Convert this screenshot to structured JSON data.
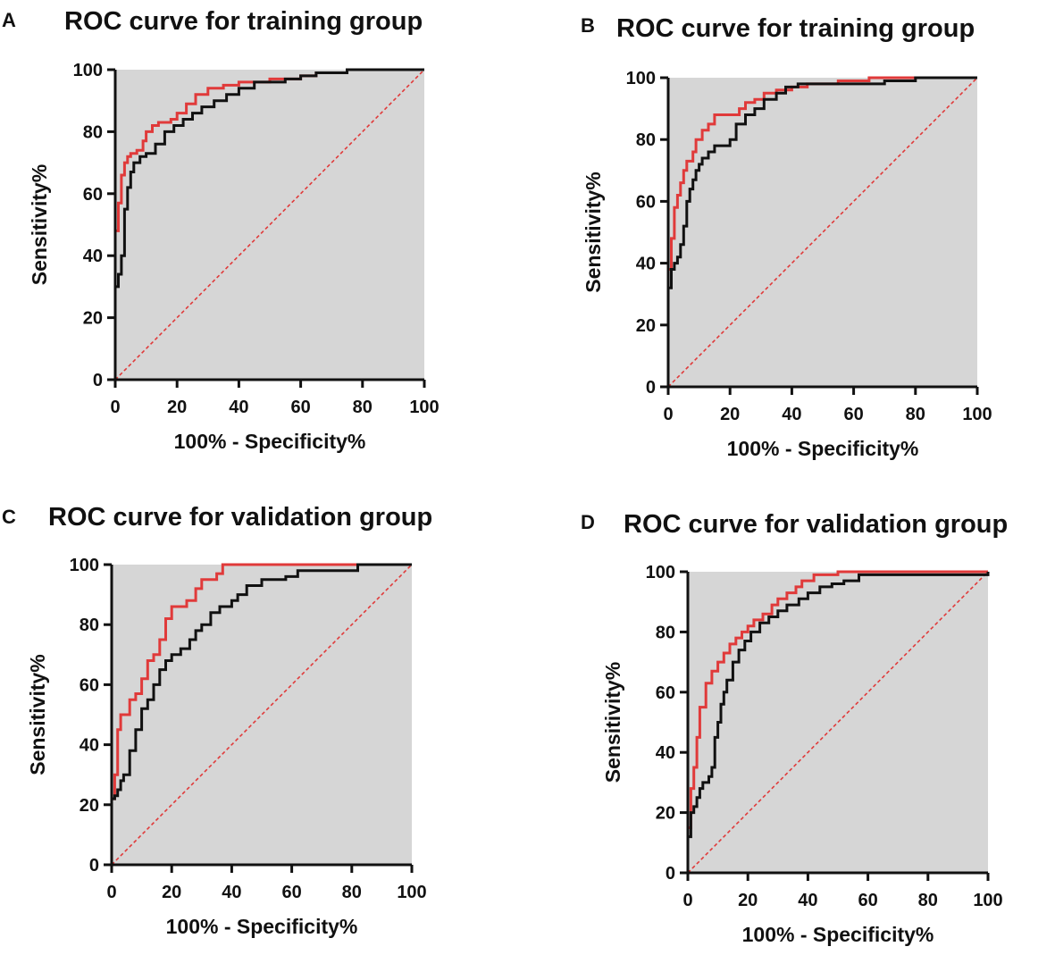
{
  "colors": {
    "plot_background": "#d6d6d6",
    "model_a": "#e03a3a",
    "model_b": "#111111",
    "reference": "#e03a3a",
    "axis": "#111111"
  },
  "chart_data": [
    {
      "panel": "A",
      "type": "line",
      "title": "ROC curve for training group",
      "xlabel": "100% - Specificity%",
      "ylabel": "Sensitivity%",
      "xlim": [
        0,
        100
      ],
      "ylim": [
        0,
        100
      ],
      "xticks": [
        "0",
        "20",
        "40",
        "60",
        "80",
        "100"
      ],
      "yticks": [
        "0",
        "20",
        "40",
        "60",
        "80",
        "100"
      ],
      "grid": false,
      "series": [
        {
          "name": "red",
          "x": [
            0,
            0,
            0,
            1,
            1,
            2,
            2,
            3,
            4,
            5,
            7,
            9,
            10,
            12,
            14,
            16,
            18,
            20,
            23,
            26,
            30,
            35,
            40,
            45,
            50,
            55,
            60,
            65,
            70,
            75,
            100
          ],
          "y": [
            0,
            30,
            48,
            52,
            57,
            62,
            66,
            70,
            72,
            73,
            74,
            77,
            80,
            82,
            83,
            83,
            84,
            86,
            89,
            92,
            94,
            95,
            96,
            96,
            97,
            97,
            98,
            99,
            99,
            100,
            100
          ]
        },
        {
          "name": "black",
          "x": [
            0,
            0,
            0,
            1,
            1,
            2,
            2,
            3,
            3,
            4,
            5,
            6,
            8,
            10,
            13,
            16,
            19,
            22,
            25,
            28,
            32,
            36,
            40,
            45,
            50,
            55,
            60,
            65,
            70,
            75,
            100
          ],
          "y": [
            0,
            28,
            30,
            32,
            34,
            36,
            40,
            45,
            55,
            62,
            67,
            70,
            72,
            73,
            76,
            80,
            82,
            84,
            86,
            88,
            90,
            92,
            94,
            96,
            96,
            97,
            98,
            99,
            99,
            100,
            100
          ]
        }
      ]
    },
    {
      "panel": "B",
      "type": "line",
      "title": "ROC curve for training group",
      "xlabel": "100% - Specificity%",
      "ylabel": "Sensitivity%",
      "xlim": [
        0,
        100
      ],
      "ylim": [
        0,
        100
      ],
      "xticks": [
        "0",
        "20",
        "40",
        "60",
        "80",
        "100"
      ],
      "yticks": [
        "0",
        "20",
        "40",
        "60",
        "80",
        "100"
      ],
      "grid": false,
      "series": [
        {
          "name": "red",
          "x": [
            0,
            0,
            1,
            1,
            2,
            3,
            4,
            5,
            6,
            8,
            9,
            11,
            13,
            15,
            17,
            20,
            23,
            25,
            28,
            31,
            35,
            40,
            45,
            50,
            55,
            60,
            65,
            70,
            100
          ],
          "y": [
            0,
            38,
            42,
            48,
            58,
            62,
            66,
            70,
            73,
            76,
            80,
            83,
            85,
            88,
            88,
            88,
            90,
            92,
            93,
            95,
            96,
            97,
            98,
            98,
            99,
            99,
            100,
            100,
            100
          ]
        },
        {
          "name": "black",
          "x": [
            0,
            0,
            0,
            1,
            1,
            2,
            3,
            4,
            5,
            6,
            7,
            8,
            9,
            10,
            11,
            13,
            15,
            18,
            20,
            22,
            25,
            28,
            31,
            35,
            38,
            42,
            50,
            60,
            70,
            80,
            100
          ],
          "y": [
            0,
            15,
            32,
            36,
            38,
            40,
            42,
            46,
            52,
            60,
            64,
            67,
            70,
            72,
            74,
            76,
            78,
            78,
            80,
            85,
            88,
            90,
            93,
            95,
            97,
            98,
            98,
            98,
            99,
            100,
            100
          ]
        }
      ]
    },
    {
      "panel": "C",
      "type": "line",
      "title": "ROC curve for validation group",
      "xlabel": "100% - Specificity%",
      "ylabel": "Sensitivity%",
      "xlim": [
        0,
        100
      ],
      "ylim": [
        0,
        100
      ],
      "xticks": [
        "0",
        "20",
        "40",
        "60",
        "80",
        "100"
      ],
      "yticks": [
        "0",
        "20",
        "40",
        "60",
        "80",
        "100"
      ],
      "grid": false,
      "series": [
        {
          "name": "red",
          "x": [
            0,
            0,
            1,
            2,
            3,
            5,
            6,
            8,
            10,
            12,
            14,
            16,
            18,
            20,
            22,
            25,
            28,
            30,
            33,
            35,
            37,
            40,
            45,
            50,
            60,
            70,
            80,
            100
          ],
          "y": [
            0,
            22,
            30,
            45,
            50,
            50,
            55,
            57,
            62,
            68,
            70,
            75,
            82,
            86,
            86,
            88,
            92,
            95,
            95,
            97,
            100,
            100,
            100,
            100,
            100,
            100,
            100,
            100
          ]
        },
        {
          "name": "black",
          "x": [
            0,
            0,
            1,
            2,
            3,
            4,
            6,
            8,
            10,
            12,
            14,
            16,
            18,
            20,
            23,
            26,
            28,
            30,
            33,
            36,
            40,
            42,
            45,
            50,
            55,
            58,
            62,
            65,
            70,
            75,
            80,
            82,
            85,
            100
          ],
          "y": [
            0,
            22,
            23,
            25,
            28,
            30,
            38,
            45,
            52,
            55,
            60,
            65,
            68,
            70,
            72,
            75,
            78,
            80,
            84,
            86,
            88,
            90,
            93,
            95,
            95,
            96,
            98,
            98,
            98,
            98,
            98,
            100,
            100,
            100
          ]
        }
      ]
    },
    {
      "panel": "D",
      "type": "line",
      "title": "ROC curve for validation group",
      "xlabel": "100% - Specificity%",
      "ylabel": "Sensitivity%",
      "xlim": [
        0,
        100
      ],
      "ylim": [
        0,
        100
      ],
      "xticks": [
        "0",
        "20",
        "40",
        "60",
        "80",
        "100"
      ],
      "yticks": [
        "0",
        "20",
        "40",
        "60",
        "80",
        "100"
      ],
      "grid": false,
      "series": [
        {
          "name": "red",
          "x": [
            0,
            0,
            1,
            2,
            3,
            4,
            6,
            8,
            10,
            12,
            14,
            16,
            18,
            20,
            22,
            25,
            28,
            30,
            33,
            36,
            38,
            42,
            50,
            57,
            100
          ],
          "y": [
            0,
            15,
            28,
            35,
            45,
            55,
            63,
            67,
            70,
            73,
            76,
            78,
            80,
            82,
            84,
            86,
            89,
            91,
            93,
            95,
            97,
            99,
            100,
            100,
            100
          ]
        },
        {
          "name": "black",
          "x": [
            0,
            0,
            1,
            2,
            3,
            4,
            5,
            7,
            8,
            9,
            10,
            11,
            12,
            13,
            15,
            17,
            19,
            21,
            24,
            27,
            30,
            33,
            37,
            40,
            44,
            48,
            52,
            57,
            100
          ],
          "y": [
            0,
            12,
            20,
            22,
            25,
            28,
            30,
            32,
            35,
            45,
            50,
            56,
            60,
            64,
            70,
            74,
            77,
            80,
            83,
            85,
            87,
            89,
            91,
            93,
            95,
            96,
            97,
            99,
            100
          ]
        }
      ]
    }
  ]
}
